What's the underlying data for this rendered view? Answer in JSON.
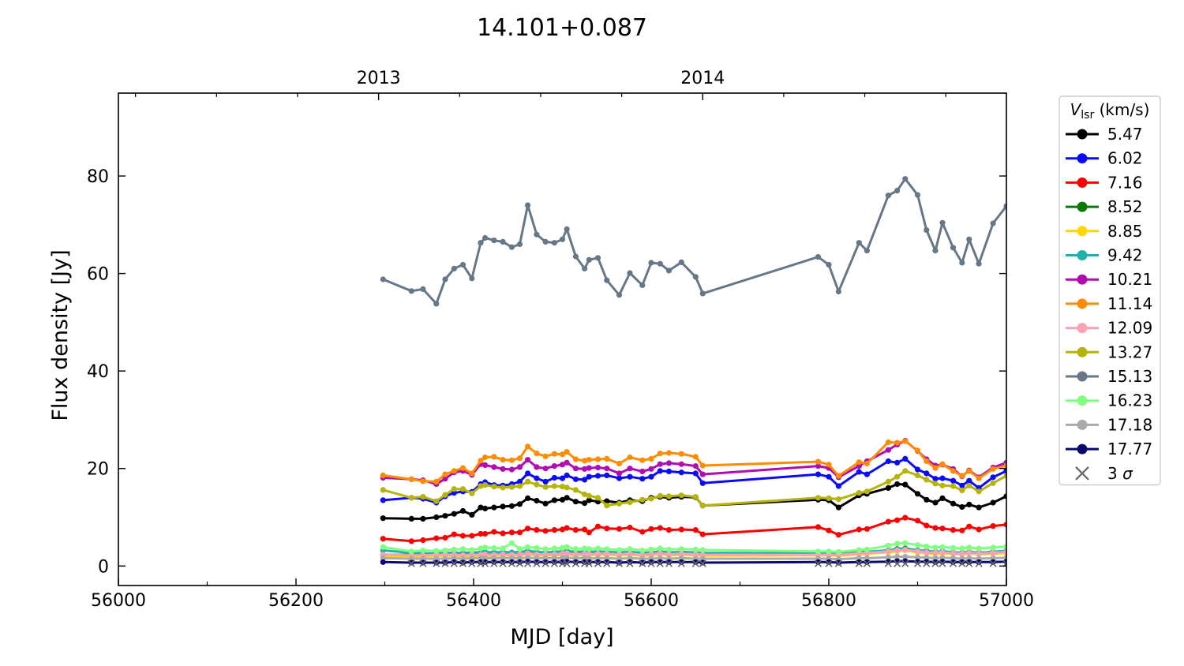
{
  "chart_data": {
    "type": "line",
    "title": "14.101+0.087",
    "xlabel": "MJD [day]",
    "ylabel": "Flux density [Jy]",
    "xlim": [
      56000,
      57000
    ],
    "ylim": [
      -4,
      97
    ],
    "xticks": [
      56000,
      56200,
      56400,
      56600,
      56800,
      57000
    ],
    "yticks": [
      0,
      20,
      40,
      60,
      80
    ],
    "top_axis": {
      "ticks": [
        {
          "x": 56293,
          "label": "2013"
        },
        {
          "x": 56658,
          "label": "2014"
        }
      ]
    },
    "grid": false,
    "legend": {
      "placement": "outside-right",
      "title_symbol": "V",
      "title_sub": "lsr",
      "title_unit": " (km/s)",
      "sigma_label_num": "3 ",
      "sigma_label_sym": "σ"
    },
    "x": [
      56298,
      56330,
      56343,
      56358,
      56368,
      56378,
      56388,
      56398,
      56408,
      56413,
      56423,
      56433,
      56443,
      56452,
      56461,
      56471,
      56481,
      56491,
      56500,
      56505,
      56515,
      56525,
      56530,
      56540,
      56550,
      56564,
      56576,
      56590,
      56600,
      56610,
      56620,
      56634,
      56650,
      56658,
      56788,
      56800,
      56811,
      56834,
      56843,
      56867,
      56877,
      56886,
      56900,
      56910,
      56920,
      56928,
      56940,
      56950,
      56958,
      56969,
      56985,
      57000
    ],
    "series": [
      {
        "name": "5.47",
        "color": "#000000",
        "values": [
          9.8,
          9.7,
          9.7,
          10.0,
          10.3,
          10.7,
          11.3,
          10.5,
          12.0,
          11.8,
          12.0,
          12.2,
          12.3,
          12.7,
          13.9,
          13.4,
          12.8,
          13.5,
          13.6,
          14.0,
          13.2,
          12.9,
          13.5,
          13.2,
          13.3,
          13.0,
          13.5,
          13.3,
          14.0,
          14.2,
          14.0,
          14.2,
          14.1,
          12.4,
          13.6,
          13.5,
          12.0,
          14.5,
          14.8,
          16.0,
          16.8,
          16.7,
          14.8,
          13.6,
          13.0,
          13.9,
          12.8,
          12.1,
          12.6,
          12.0,
          13.0,
          14.3
        ]
      },
      {
        "name": "6.02",
        "color": "#0a0aff",
        "values": [
          13.5,
          14.0,
          13.8,
          13.0,
          14.3,
          15.0,
          15.3,
          15.2,
          16.8,
          17.2,
          16.6,
          16.5,
          16.8,
          17.3,
          19.0,
          18.0,
          17.3,
          18.1,
          18.0,
          18.6,
          17.8,
          17.7,
          18.3,
          18.5,
          18.6,
          18.0,
          18.3,
          17.9,
          18.3,
          19.5,
          19.4,
          19.2,
          19.0,
          17.0,
          18.8,
          18.3,
          16.4,
          19.3,
          18.8,
          21.5,
          21.2,
          22.0,
          19.8,
          19.0,
          17.9,
          18.0,
          17.5,
          16.5,
          17.5,
          16.0,
          18.2,
          19.5
        ]
      },
      {
        "name": "7.16",
        "color": "#ff0000",
        "values": [
          5.6,
          5.1,
          5.3,
          5.7,
          5.8,
          6.5,
          6.2,
          6.2,
          6.6,
          6.6,
          7.0,
          6.7,
          6.9,
          6.9,
          7.7,
          7.4,
          7.2,
          7.4,
          7.5,
          7.8,
          7.4,
          7.5,
          6.9,
          8.1,
          7.7,
          7.6,
          7.9,
          7.0,
          7.6,
          7.8,
          7.4,
          7.5,
          7.4,
          6.5,
          8.0,
          7.3,
          6.4,
          7.5,
          7.6,
          9.1,
          9.4,
          9.9,
          9.3,
          8.3,
          7.8,
          7.7,
          7.4,
          7.3,
          8.1,
          7.5,
          8.2,
          8.5
        ]
      },
      {
        "name": "8.52",
        "color": "#0b7a0b",
        "values": [
          2.3,
          2.3,
          2.3,
          2.4,
          2.4,
          2.4,
          2.3,
          2.4,
          2.4,
          2.5,
          2.4,
          2.5,
          2.4,
          2.6,
          2.8,
          2.5,
          2.5,
          2.6,
          2.6,
          2.8,
          2.5,
          2.6,
          2.5,
          2.7,
          2.6,
          2.5,
          2.6,
          2.4,
          2.5,
          2.7,
          2.5,
          2.6,
          2.5,
          2.4,
          2.4,
          2.4,
          2.4,
          2.8,
          2.9,
          3.2,
          3.5,
          3.6,
          3.2,
          3.1,
          2.9,
          3.0,
          2.8,
          2.7,
          2.9,
          2.7,
          2.9,
          3.1
        ]
      },
      {
        "name": "8.85",
        "color": "#ffd700",
        "values": [
          2.1,
          2.0,
          2.0,
          2.1,
          2.1,
          2.1,
          2.0,
          2.1,
          2.1,
          2.1,
          2.1,
          2.2,
          2.1,
          2.2,
          2.4,
          2.2,
          2.2,
          2.2,
          2.3,
          2.4,
          2.2,
          2.3,
          2.2,
          2.3,
          2.3,
          2.2,
          2.3,
          2.1,
          2.2,
          2.4,
          2.2,
          2.3,
          2.2,
          2.1,
          2.2,
          2.2,
          2.1,
          2.4,
          2.5,
          2.8,
          3.0,
          3.2,
          2.8,
          2.6,
          2.5,
          2.6,
          2.5,
          2.4,
          2.6,
          2.4,
          2.5,
          2.7
        ]
      },
      {
        "name": "9.42",
        "color": "#20b2aa",
        "values": [
          3.2,
          2.7,
          2.6,
          2.6,
          2.7,
          2.7,
          2.7,
          2.8,
          2.8,
          2.9,
          2.8,
          2.9,
          2.8,
          2.9,
          3.1,
          2.9,
          2.8,
          2.9,
          3.0,
          3.1,
          2.9,
          3.0,
          2.9,
          3.0,
          2.9,
          2.8,
          2.9,
          2.7,
          2.8,
          3.0,
          2.8,
          2.9,
          2.8,
          2.7,
          2.6,
          2.6,
          2.6,
          2.8,
          2.9,
          3.2,
          3.4,
          3.5,
          3.2,
          3.0,
          2.9,
          3.0,
          2.8,
          2.7,
          2.9,
          2.7,
          2.9,
          3.1
        ]
      },
      {
        "name": "10.21",
        "color": "#b30bb3",
        "values": [
          18.1,
          17.8,
          17.6,
          16.8,
          17.9,
          19.2,
          19.5,
          18.7,
          20.9,
          20.7,
          20.3,
          19.9,
          19.8,
          20.3,
          21.8,
          20.3,
          20.0,
          20.5,
          20.8,
          21.2,
          20.0,
          19.9,
          20.1,
          20.2,
          20.0,
          19.0,
          20.0,
          19.4,
          19.9,
          20.9,
          21.1,
          20.9,
          20.5,
          18.8,
          20.5,
          20.1,
          18.2,
          20.5,
          21.5,
          23.8,
          24.9,
          25.7,
          23.6,
          21.9,
          20.6,
          20.8,
          19.9,
          18.4,
          19.6,
          18.2,
          20.2,
          21.2
        ]
      },
      {
        "name": "11.14",
        "color": "#ff8c00",
        "values": [
          18.6,
          17.8,
          17.4,
          17.3,
          18.8,
          19.5,
          20.1,
          19.0,
          21.6,
          22.3,
          22.4,
          21.8,
          21.7,
          22.1,
          24.5,
          23.1,
          22.5,
          23.0,
          22.9,
          23.4,
          21.9,
          21.6,
          21.8,
          21.9,
          22.0,
          21.0,
          22.3,
          21.7,
          22.0,
          23.1,
          23.2,
          23.0,
          22.4,
          20.6,
          21.4,
          20.8,
          18.5,
          21.3,
          21.0,
          25.4,
          25.3,
          25.6,
          23.7,
          21.5,
          20.1,
          20.9,
          19.5,
          18.5,
          19.5,
          18.0,
          19.9,
          20.6
        ]
      },
      {
        "name": "12.09",
        "color": "#ffa0b4",
        "values": [
          2.3,
          2.2,
          2.2,
          2.3,
          2.3,
          2.3,
          2.2,
          2.3,
          2.3,
          2.4,
          2.3,
          2.4,
          2.3,
          2.4,
          2.6,
          2.4,
          2.4,
          2.4,
          2.5,
          2.6,
          2.4,
          2.5,
          2.4,
          2.5,
          2.5,
          2.4,
          2.5,
          2.3,
          2.4,
          2.6,
          2.4,
          2.5,
          2.4,
          2.3,
          2.3,
          2.3,
          2.3,
          2.6,
          2.7,
          3.0,
          3.2,
          3.3,
          3.0,
          2.8,
          2.7,
          2.8,
          2.6,
          2.5,
          2.7,
          2.5,
          2.7,
          2.9
        ]
      },
      {
        "name": "13.27",
        "color": "#b4b40b",
        "values": [
          15.6,
          14.0,
          14.2,
          13.3,
          14.6,
          15.8,
          15.8,
          14.9,
          16.4,
          16.6,
          16.3,
          16.1,
          16.2,
          16.4,
          17.3,
          16.7,
          16.2,
          16.4,
          16.3,
          16.1,
          15.6,
          14.7,
          14.4,
          14.0,
          12.4,
          12.8,
          13.1,
          13.6,
          13.8,
          14.4,
          14.3,
          14.5,
          14.2,
          12.4,
          14.0,
          13.9,
          13.7,
          15.0,
          15.3,
          17.3,
          18.3,
          19.5,
          18.6,
          17.7,
          16.9,
          16.5,
          16.4,
          15.5,
          16.5,
          15.3,
          17.0,
          18.5
        ]
      },
      {
        "name": "15.13",
        "color": "#667788",
        "values": [
          58.8,
          56.4,
          56.8,
          53.8,
          58.8,
          61.0,
          61.8,
          59.0,
          66.3,
          67.3,
          66.8,
          66.5,
          65.4,
          66.0,
          74.0,
          68.0,
          66.5,
          66.3,
          67.0,
          69.1,
          63.5,
          61.0,
          62.8,
          63.2,
          58.6,
          55.6,
          60.1,
          57.6,
          62.2,
          62.0,
          60.6,
          62.3,
          59.3,
          55.9,
          63.4,
          61.8,
          56.3,
          66.3,
          64.7,
          76.0,
          77.0,
          79.4,
          76.1,
          68.9,
          64.7,
          70.4,
          65.3,
          62.2,
          67.0,
          62.0,
          70.3,
          73.8
        ]
      },
      {
        "name": "16.23",
        "color": "#80ff80",
        "values": [
          3.9,
          3.0,
          3.2,
          3.1,
          3.2,
          3.4,
          3.5,
          3.3,
          3.6,
          3.8,
          3.7,
          3.6,
          4.7,
          3.5,
          3.9,
          3.7,
          3.5,
          3.6,
          3.7,
          3.9,
          3.5,
          3.6,
          3.5,
          3.6,
          3.5,
          3.3,
          3.5,
          3.2,
          3.4,
          3.6,
          3.4,
          3.5,
          3.4,
          3.3,
          3.0,
          3.0,
          2.9,
          3.3,
          3.4,
          4.2,
          4.6,
          4.7,
          4.3,
          4.0,
          3.8,
          3.9,
          3.7,
          3.6,
          3.8,
          3.6,
          3.8,
          4.0
        ]
      },
      {
        "name": "17.18",
        "color": "#aaaaaa",
        "values": [
          1.6,
          1.5,
          1.5,
          1.5,
          1.5,
          1.6,
          1.5,
          1.6,
          1.6,
          1.6,
          1.6,
          1.6,
          1.6,
          1.6,
          1.7,
          1.6,
          1.6,
          1.6,
          1.6,
          1.7,
          1.6,
          1.6,
          1.5,
          1.6,
          1.6,
          1.5,
          1.6,
          1.5,
          1.5,
          1.6,
          1.5,
          1.6,
          1.5,
          1.5,
          1.5,
          1.5,
          1.4,
          1.6,
          1.6,
          1.8,
          1.9,
          1.9,
          1.8,
          1.7,
          1.6,
          1.7,
          1.6,
          1.5,
          1.6,
          1.5,
          1.6,
          1.7
        ]
      },
      {
        "name": "17.77",
        "color": "#0a0a6e",
        "values": [
          0.8,
          0.7,
          0.7,
          0.7,
          0.7,
          0.8,
          0.7,
          0.8,
          0.8,
          0.8,
          0.8,
          0.8,
          0.8,
          0.8,
          0.9,
          0.8,
          0.8,
          0.8,
          0.8,
          0.9,
          0.8,
          0.8,
          0.8,
          0.8,
          0.8,
          0.7,
          0.8,
          0.7,
          0.8,
          0.8,
          0.8,
          0.8,
          0.8,
          0.7,
          0.8,
          0.8,
          0.7,
          0.8,
          0.8,
          0.9,
          1.0,
          1.0,
          0.9,
          0.9,
          0.8,
          0.9,
          0.8,
          0.8,
          0.8,
          0.8,
          0.8,
          0.9
        ]
      }
    ],
    "sigma3": {
      "color": "#666666",
      "y": 0.5,
      "x": [
        56330,
        56343,
        56358,
        56368,
        56378,
        56388,
        56398,
        56408,
        56413,
        56423,
        56433,
        56443,
        56452,
        56461,
        56471,
        56481,
        56491,
        56500,
        56505,
        56515,
        56525,
        56530,
        56540,
        56550,
        56564,
        56576,
        56590,
        56600,
        56610,
        56620,
        56634,
        56650,
        56658,
        56788,
        56800,
        56811,
        56834,
        56843,
        56867,
        56877,
        56886,
        56900,
        56910,
        56920,
        56928,
        56940,
        56950,
        56958,
        56969,
        56985,
        57000
      ]
    }
  }
}
